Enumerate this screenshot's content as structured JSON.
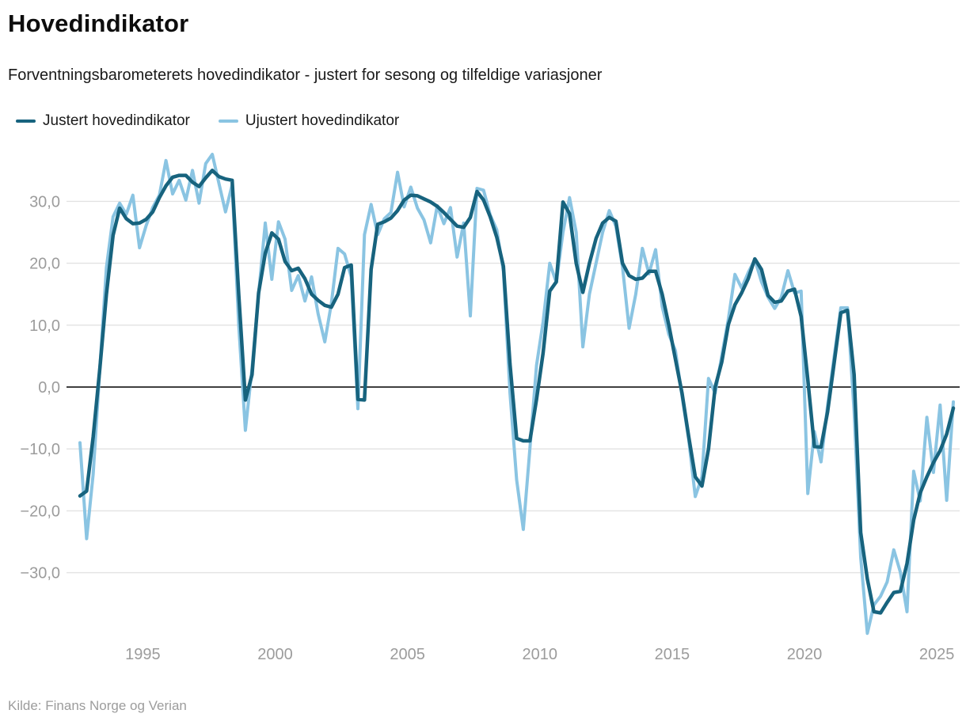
{
  "header": {
    "title": "Hovedindikator",
    "subtitle": "Forventningsbarometerets hovedindikator - justert for sesong og tilfeldige variasjoner"
  },
  "legend": [
    {
      "label": "Justert hovedindikator",
      "color": "#17637e"
    },
    {
      "label": "Ujustert hovedindikator",
      "color": "#8ac4e2"
    }
  ],
  "source": "Kilde: Finans Norge og Verian",
  "colors": {
    "adjusted_line": "#17637e",
    "unadjusted_line": "#8ac4e2",
    "grid": "#e2e2e2",
    "zero_line": "#000000",
    "tick_label": "#9c9c9c"
  },
  "chart_data": {
    "type": "line",
    "title": "Hovedindikator",
    "x_start": "1992-Q3",
    "x_frequency": "quarterly",
    "ylim": [
      -40,
      38
    ],
    "grid": "horizontal",
    "zero_line": true,
    "legend_position": "top-left",
    "y_ticks": [
      {
        "value": 30,
        "label": "30,0"
      },
      {
        "value": 20,
        "label": "20,0"
      },
      {
        "value": 10,
        "label": "10,0"
      },
      {
        "value": 0,
        "label": "0,0"
      },
      {
        "value": -10,
        "label": "−10,0"
      },
      {
        "value": -20,
        "label": "−20,0"
      },
      {
        "value": -30,
        "label": "−30,0"
      }
    ],
    "x_ticks": [
      {
        "year": 1995,
        "label": "1995"
      },
      {
        "year": 2000,
        "label": "2000"
      },
      {
        "year": 2005,
        "label": "2005"
      },
      {
        "year": 2010,
        "label": "2010"
      },
      {
        "year": 2015,
        "label": "2015"
      },
      {
        "year": 2020,
        "label": "2020"
      },
      {
        "year": 2025,
        "label": "2025"
      }
    ],
    "series": [
      {
        "name": "Justert hovedindikator",
        "color": "#17637e",
        "width": 4.5,
        "values": [
          -17.6,
          -16.8,
          -8,
          3,
          15,
          24.5,
          28.9,
          27.2,
          26.4,
          26.5,
          27.1,
          28.3,
          30.6,
          32.5,
          33.9,
          34.2,
          34.2,
          33.1,
          32.4,
          33.8,
          35,
          34,
          33.6,
          33.4,
          15,
          -2.1,
          2,
          15.2,
          21.6,
          24.9,
          23.9,
          20.3,
          18.8,
          19.2,
          17.5,
          15,
          14,
          13.2,
          12.9,
          15,
          19.3,
          19.7,
          -2,
          -2.1,
          19,
          26.3,
          26.7,
          27.3,
          28.5,
          30.2,
          31,
          30.9,
          30.4,
          29.9,
          29.2,
          28.2,
          27.1,
          26,
          25.8,
          27.4,
          31.6,
          30.2,
          27.5,
          24.2,
          19.5,
          3.7,
          -8.3,
          -8.7,
          -8.7,
          -2,
          5.5,
          15.5,
          17,
          29.9,
          28,
          20,
          15.3,
          20,
          24,
          26.5,
          27.4,
          26.8,
          20,
          18,
          17.4,
          17.6,
          18.7,
          18.7,
          15,
          10,
          4.5,
          -1,
          -8,
          -14.5,
          -16,
          -10,
          0,
          4,
          10.1,
          13.3,
          15.2,
          17.5,
          20.7,
          19,
          14.8,
          13.7,
          13.9,
          15.5,
          15.8,
          11.4,
          1.2,
          -9.6,
          -9.7,
          -4,
          4,
          12,
          12.4,
          2,
          -23.5,
          -31,
          -36.3,
          -36.5,
          -34.8,
          -33.2,
          -33,
          -28.5,
          -21.5,
          -17.1,
          -14.5,
          -12.2,
          -10.3,
          -7.6,
          -3.4
        ]
      },
      {
        "name": "Ujustert hovedindikator",
        "color": "#8ac4e2",
        "width": 4,
        "values": [
          -9,
          -24.5,
          -14,
          3,
          19.3,
          27.5,
          29.7,
          27.9,
          31,
          22.5,
          26.1,
          29,
          31,
          36.6,
          31.2,
          33.4,
          30.2,
          35,
          29.7,
          36.1,
          37.6,
          32.9,
          28.3,
          32.7,
          10,
          -7,
          3,
          15,
          26.5,
          17.4,
          26.7,
          23.9,
          15.6,
          18,
          13.9,
          17.8,
          11.8,
          7.3,
          13.5,
          22.4,
          21.5,
          17.8,
          -3.5,
          24.6,
          29.5,
          24.6,
          27.2,
          28.2,
          34.7,
          29.1,
          32.3,
          28.9,
          27,
          23.3,
          29.3,
          26.4,
          29,
          21,
          26.5,
          11.5,
          32.1,
          31.8,
          27.8,
          25.4,
          18.7,
          -1,
          -15,
          -23,
          -10,
          3.5,
          10.5,
          20,
          16.9,
          25,
          30.6,
          25,
          6.5,
          15,
          20,
          25,
          28.5,
          26,
          19.4,
          9.5,
          15,
          22.4,
          18.3,
          22.2,
          13,
          8.5,
          5.9,
          -1.5,
          -8.5,
          -17.7,
          -14.5,
          1.4,
          -1,
          5,
          11,
          18.2,
          16,
          18.5,
          20.6,
          17,
          14.5,
          12.7,
          14.5,
          18.8,
          15.2,
          15.5,
          -17.2,
          -7.2,
          -12.1,
          -3,
          5,
          12.8,
          12.8,
          -4,
          -27.5,
          -39.8,
          -35.2,
          -33.8,
          -31.5,
          -26.3,
          -29.9,
          -36.3,
          -13.6,
          -18.4,
          -4.9,
          -13.8,
          -2.9,
          -18.3,
          -2.4
        ]
      }
    ]
  }
}
